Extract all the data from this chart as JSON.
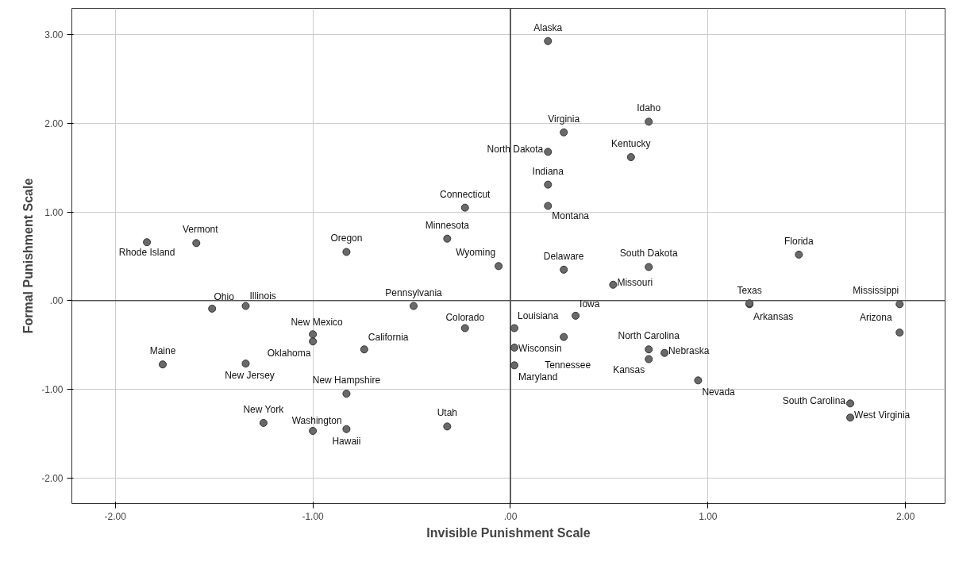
{
  "chart_data": {
    "type": "scatter",
    "xlabel": "Invisible Punishment Scale",
    "ylabel": "Formal Punishment Scale",
    "xlim": [
      -2.22,
      2.2
    ],
    "ylim": [
      -2.29,
      3.3
    ],
    "xticks": [
      {
        "value": -2,
        "label": "-2.00"
      },
      {
        "value": -1,
        "label": "-1.00"
      },
      {
        "value": 0,
        "label": ".00"
      },
      {
        "value": 1,
        "label": "1.00"
      },
      {
        "value": 2,
        "label": "2.00"
      }
    ],
    "yticks": [
      {
        "value": -2,
        "label": "-2.00"
      },
      {
        "value": -1,
        "label": "-1.00"
      },
      {
        "value": 0,
        "label": ".00"
      },
      {
        "value": 1,
        "label": "1.00"
      },
      {
        "value": 2,
        "label": "2.00"
      },
      {
        "value": 3,
        "label": "3.00"
      }
    ],
    "grid": true,
    "marker": "circle",
    "ref_lines": [
      {
        "axis": "x",
        "value": 0,
        "color": "#333333"
      },
      {
        "axis": "y",
        "value": 0,
        "color": "#555555"
      }
    ],
    "series": [
      {
        "color": "#696969",
        "x": [
          0.19,
          0.7,
          0.27,
          0.19,
          0.61,
          0.19,
          -0.23,
          0.19,
          -1.84,
          -1.59,
          -0.32,
          -0.83,
          1.46,
          -0.06,
          0.7,
          0.27,
          0.52,
          -1.51,
          -1.34,
          -0.49,
          1.21,
          1.97,
          0.33,
          1.21,
          1.97,
          -1.0,
          -1.0,
          -0.23,
          0.02,
          -0.74,
          0.02,
          -1.76,
          -1.34,
          0.02,
          0.27,
          0.7,
          0.78,
          0.7,
          0.95,
          -0.83,
          1.72,
          1.72,
          -1.25,
          -0.32,
          -1.0,
          -0.83
        ],
        "values": [
          2.93,
          2.02,
          1.9,
          1.68,
          1.62,
          1.31,
          1.05,
          1.07,
          0.66,
          0.65,
          0.7,
          0.55,
          0.52,
          0.39,
          0.38,
          0.35,
          0.18,
          -0.09,
          -0.06,
          -0.06,
          -0.04,
          -0.04,
          -0.17,
          -0.03,
          -0.36,
          -0.38,
          -0.46,
          -0.31,
          -0.31,
          -0.55,
          -0.53,
          -0.72,
          -0.71,
          -0.73,
          -0.41,
          -0.55,
          -0.59,
          -0.66,
          -0.9,
          -1.05,
          -1.16,
          -1.32,
          -1.38,
          -1.42,
          -1.47,
          -1.45
        ],
        "value_labels": [
          "Alaska",
          "Idaho",
          "Virginia",
          "North Dakota",
          "Kentucky",
          "Indiana",
          "Connecticut",
          "Montana",
          "Rhode Island",
          "Vermont",
          "Minnesota",
          "Oregon",
          "Florida",
          "Wyoming",
          "South Dakota",
          "Delaware",
          "Missouri",
          "Ohio",
          "Illinois",
          "Pennsylvania",
          "Texas",
          "Mississippi",
          "Iowa",
          "Arkansas",
          "Arizona",
          "New Mexico",
          "Oklahoma",
          "Colorado",
          "Louisiana",
          "California",
          "Wisconsin",
          "Maine",
          "New Jersey",
          "Maryland",
          "Tennessee",
          "North Carolina",
          "Nebraska",
          "Kansas",
          "Nevada",
          "New Hampshire",
          "South Carolina",
          "West Virginia",
          "New York",
          "Utah",
          "Washington",
          "Hawaii"
        ]
      }
    ]
  }
}
